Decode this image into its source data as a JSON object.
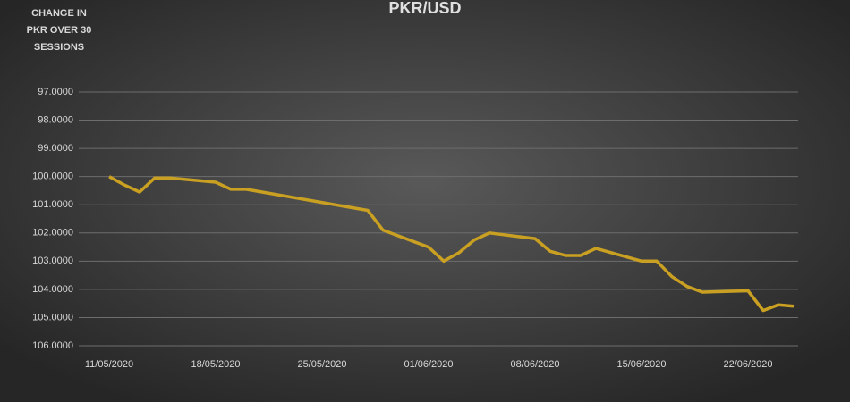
{
  "chart_data": {
    "type": "line",
    "title": "PKR/USD",
    "annotation": [
      "CHANGE IN",
      "PKR OVER 30",
      "SESSIONS"
    ],
    "x": [
      "11/05/2020",
      "12/05/2020",
      "13/05/2020",
      "14/05/2020",
      "15/05/2020",
      "18/05/2020",
      "19/05/2020",
      "20/05/2020",
      "28/05/2020",
      "29/05/2020",
      "01/06/2020",
      "02/06/2020",
      "03/06/2020",
      "04/06/2020",
      "05/06/2020",
      "08/06/2020",
      "09/06/2020",
      "10/06/2020",
      "11/06/2020",
      "12/06/2020",
      "15/06/2020",
      "16/06/2020",
      "17/06/2020",
      "18/06/2020",
      "19/06/2020",
      "22/06/2020",
      "23/06/2020",
      "24/06/2020",
      "25/06/2020"
    ],
    "series": [
      {
        "color": "#c9a021",
        "values": [
          100.0,
          100.3,
          100.55,
          100.05,
          100.05,
          100.2,
          100.45,
          100.45,
          101.2,
          101.9,
          102.5,
          103.0,
          102.7,
          102.25,
          102.0,
          102.2,
          102.65,
          102.8,
          102.8,
          102.55,
          103.0,
          103.0,
          103.55,
          103.9,
          104.1,
          104.05,
          104.75,
          104.55,
          104.6
        ]
      }
    ],
    "xlim": [
      "09/05/2020",
      "26/06/2020"
    ],
    "xticks": [
      "11/05/2020",
      "18/05/2020",
      "25/05/2020",
      "01/06/2020",
      "08/06/2020",
      "15/06/2020",
      "22/06/2020"
    ],
    "ylim": [
      97,
      106
    ],
    "y_inverted": true,
    "yticks": [
      {
        "value": 97,
        "label": "97.0000"
      },
      {
        "value": 98,
        "label": "98.0000"
      },
      {
        "value": 99,
        "label": "99.0000"
      },
      {
        "value": 100,
        "label": "100.0000"
      },
      {
        "value": 101,
        "label": "101.0000"
      },
      {
        "value": 102,
        "label": "102.0000"
      },
      {
        "value": 103,
        "label": "103.0000"
      },
      {
        "value": 104,
        "label": "104.0000"
      },
      {
        "value": 105,
        "label": "105.0000"
      },
      {
        "value": 106,
        "label": "106.0000"
      }
    ],
    "grid": true
  }
}
